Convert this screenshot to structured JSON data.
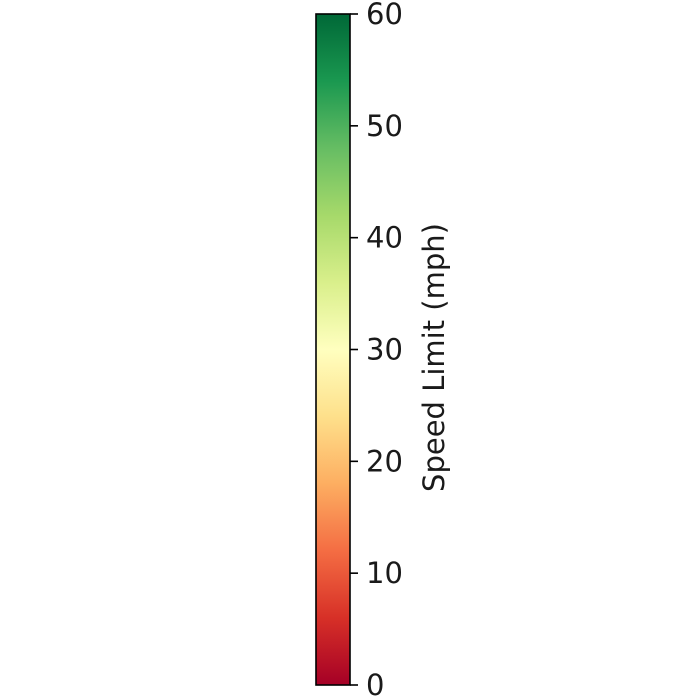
{
  "chart_data": {
    "type": "colorbar",
    "orientation": "vertical",
    "label": "Speed Limit (mph)",
    "colormap": "RdYlGn",
    "vmin": 0,
    "vmax": 60,
    "ticks": [
      0,
      10,
      20,
      30,
      40,
      50,
      60
    ],
    "tick_labels": [
      "0",
      "10",
      "20",
      "30",
      "40",
      "50",
      "60"
    ],
    "colorscale": [
      {
        "value": 0,
        "color": "#a50026"
      },
      {
        "value": 6,
        "color": "#d73027"
      },
      {
        "value": 12,
        "color": "#f46d43"
      },
      {
        "value": 18,
        "color": "#fdae61"
      },
      {
        "value": 24,
        "color": "#fee08b"
      },
      {
        "value": 30,
        "color": "#ffffbf"
      },
      {
        "value": 36,
        "color": "#d9ef8b"
      },
      {
        "value": 42,
        "color": "#a6d96a"
      },
      {
        "value": 48,
        "color": "#66bd63"
      },
      {
        "value": 54,
        "color": "#1a9850"
      },
      {
        "value": 60,
        "color": "#006837"
      }
    ]
  }
}
